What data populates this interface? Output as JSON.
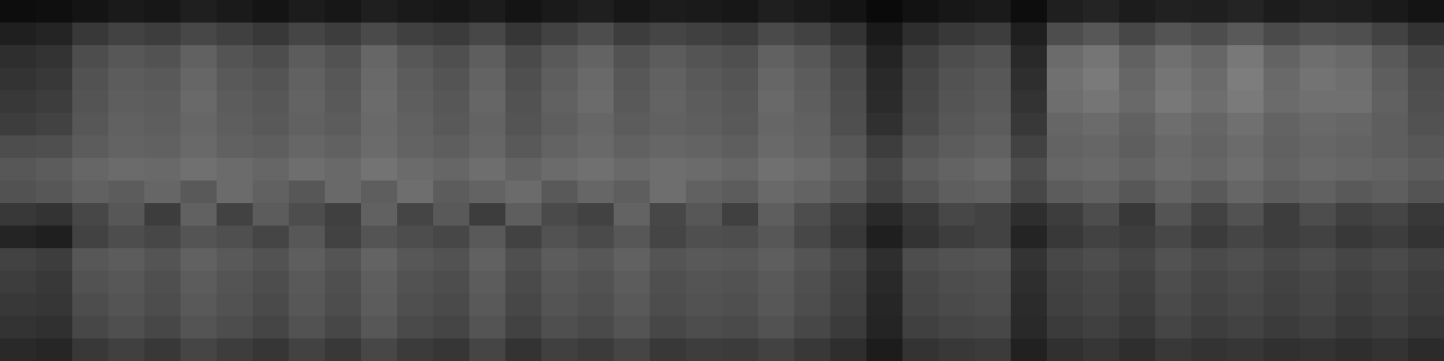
{
  "chart_data": {
    "type": "heatmap",
    "tick_labels": false,
    "zlim": [
      0,
      100
    ],
    "cells": [
      [
        5,
        6,
        8,
        10,
        9,
        12,
        10,
        8,
        11,
        9,
        12,
        10,
        9,
        11,
        8,
        10,
        12,
        9,
        11,
        10,
        9,
        12,
        10,
        8,
        4,
        7,
        9,
        10,
        5,
        12,
        14,
        11,
        13,
        12,
        14,
        11,
        13,
        12,
        10,
        8
      ],
      [
        12,
        14,
        22,
        26,
        24,
        28,
        25,
        22,
        27,
        24,
        29,
        25,
        23,
        28,
        21,
        26,
        30,
        24,
        27,
        25,
        23,
        29,
        26,
        20,
        10,
        18,
        22,
        24,
        12,
        30,
        34,
        28,
        33,
        30,
        35,
        29,
        32,
        31,
        26,
        20
      ],
      [
        18,
        20,
        30,
        34,
        32,
        38,
        33,
        30,
        36,
        32,
        40,
        34,
        31,
        37,
        29,
        35,
        39,
        32,
        36,
        33,
        31,
        38,
        34,
        27,
        14,
        25,
        30,
        32,
        16,
        42,
        46,
        38,
        44,
        40,
        47,
        39,
        43,
        41,
        35,
        28
      ],
      [
        20,
        22,
        32,
        36,
        35,
        40,
        35,
        33,
        38,
        34,
        41,
        36,
        33,
        39,
        31,
        37,
        41,
        34,
        38,
        35,
        33,
        40,
        36,
        29,
        16,
        27,
        32,
        34,
        18,
        44,
        48,
        40,
        46,
        42,
        49,
        41,
        45,
        43,
        37,
        30
      ],
      [
        22,
        24,
        33,
        37,
        36,
        41,
        36,
        34,
        39,
        35,
        42,
        37,
        34,
        40,
        32,
        38,
        42,
        35,
        39,
        36,
        34,
        41,
        37,
        30,
        17,
        28,
        33,
        35,
        20,
        43,
        46,
        41,
        47,
        43,
        48,
        42,
        44,
        44,
        38,
        31
      ],
      [
        24,
        26,
        34,
        38,
        37,
        40,
        37,
        35,
        38,
        36,
        41,
        38,
        35,
        39,
        33,
        37,
        40,
        36,
        38,
        37,
        35,
        40,
        38,
        31,
        19,
        29,
        34,
        36,
        22,
        40,
        42,
        38,
        43,
        40,
        44,
        39,
        41,
        40,
        37,
        32
      ],
      [
        30,
        31,
        36,
        39,
        38,
        41,
        38,
        37,
        40,
        38,
        42,
        39,
        37,
        40,
        35,
        39,
        41,
        38,
        40,
        39,
        37,
        41,
        39,
        34,
        24,
        33,
        36,
        38,
        26,
        39,
        40,
        37,
        41,
        39,
        42,
        38,
        40,
        39,
        37,
        34
      ],
      [
        34,
        36,
        40,
        42,
        41,
        44,
        42,
        40,
        43,
        41,
        45,
        42,
        40,
        43,
        39,
        42,
        44,
        41,
        43,
        42,
        40,
        44,
        42,
        37,
        28,
        36,
        39,
        41,
        30,
        40,
        41,
        39,
        42,
        40,
        43,
        39,
        41,
        40,
        39,
        36
      ],
      [
        32,
        34,
        38,
        36,
        40,
        35,
        42,
        38,
        34,
        41,
        37,
        43,
        36,
        39,
        42,
        35,
        40,
        37,
        43,
        38,
        36,
        41,
        39,
        34,
        26,
        33,
        37,
        38,
        28,
        36,
        38,
        34,
        39,
        35,
        40,
        36,
        38,
        35,
        37,
        33
      ],
      [
        22,
        20,
        28,
        34,
        24,
        38,
        26,
        36,
        30,
        25,
        38,
        27,
        35,
        24,
        37,
        29,
        26,
        39,
        28,
        34,
        25,
        37,
        30,
        24,
        16,
        22,
        28,
        26,
        18,
        24,
        30,
        22,
        33,
        26,
        32,
        24,
        30,
        25,
        27,
        22
      ],
      [
        14,
        12,
        26,
        30,
        28,
        33,
        31,
        27,
        34,
        26,
        33,
        30,
        28,
        35,
        26,
        32,
        29,
        34,
        27,
        31,
        30,
        34,
        28,
        22,
        12,
        20,
        24,
        26,
        14,
        22,
        26,
        24,
        28,
        23,
        27,
        24,
        26,
        22,
        24,
        20
      ],
      [
        26,
        24,
        34,
        36,
        33,
        38,
        35,
        32,
        37,
        33,
        39,
        34,
        32,
        38,
        31,
        36,
        34,
        38,
        33,
        35,
        34,
        37,
        33,
        28,
        18,
        30,
        32,
        33,
        20,
        28,
        30,
        27,
        32,
        29,
        31,
        28,
        30,
        27,
        29,
        26
      ],
      [
        24,
        22,
        32,
        34,
        31,
        36,
        33,
        30,
        35,
        31,
        37,
        32,
        30,
        36,
        29,
        34,
        32,
        36,
        31,
        33,
        32,
        35,
        31,
        26,
        16,
        28,
        30,
        31,
        18,
        26,
        28,
        25,
        30,
        27,
        29,
        26,
        28,
        25,
        27,
        24
      ],
      [
        22,
        21,
        30,
        33,
        30,
        35,
        32,
        29,
        34,
        30,
        36,
        31,
        29,
        35,
        28,
        33,
        31,
        35,
        30,
        32,
        31,
        34,
        30,
        25,
        15,
        27,
        29,
        30,
        17,
        25,
        27,
        24,
        29,
        26,
        28,
        25,
        27,
        24,
        26,
        23
      ],
      [
        20,
        19,
        28,
        31,
        28,
        33,
        30,
        27,
        32,
        28,
        34,
        29,
        27,
        33,
        26,
        31,
        29,
        33,
        28,
        30,
        29,
        32,
        28,
        23,
        14,
        25,
        27,
        28,
        16,
        23,
        25,
        22,
        27,
        24,
        26,
        23,
        25,
        22,
        24,
        21
      ],
      [
        16,
        15,
        22,
        25,
        22,
        27,
        24,
        21,
        26,
        22,
        28,
        23,
        21,
        27,
        20,
        25,
        23,
        27,
        22,
        24,
        23,
        26,
        22,
        18,
        11,
        20,
        22,
        23,
        13,
        19,
        21,
        18,
        22,
        20,
        21,
        19,
        20,
        18,
        20,
        17
      ]
    ]
  }
}
